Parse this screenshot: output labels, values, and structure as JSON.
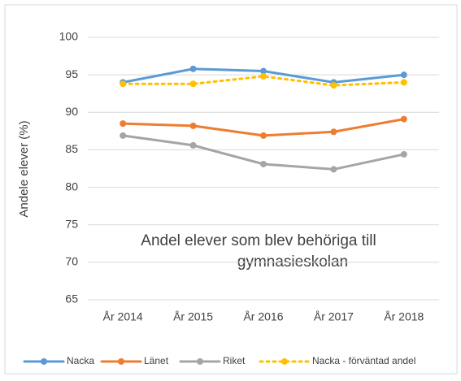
{
  "chart_data": {
    "type": "line",
    "title_lines": [
      "Andel elever som blev behöriga till",
      "gymnasieskolan"
    ],
    "ylabel": "Andele elever (%)",
    "categories": [
      "År 2014",
      "År 2015",
      "År 2016",
      "År 2017",
      "År 2018"
    ],
    "series": [
      {
        "name": "Nacka",
        "color": "#5b9bd5",
        "values": [
          94,
          95.8,
          95.5,
          94,
          95
        ]
      },
      {
        "name": "Länet",
        "color": "#ed7d31",
        "values": [
          88.5,
          88.2,
          86.9,
          87.4,
          89.1
        ]
      },
      {
        "name": "Riket",
        "color": "#a5a5a5",
        "values": [
          86.9,
          85.6,
          83.1,
          82.4,
          84.4
        ]
      },
      {
        "name": "Nacka - förväntad andel",
        "color": "#ffc000",
        "dotted": true,
        "values": [
          93.8,
          93.8,
          94.8,
          93.6,
          94
        ]
      }
    ],
    "ylim": [
      65,
      100
    ],
    "yticks": [
      65,
      70,
      75,
      80,
      85,
      90,
      95,
      100
    ],
    "grid": true,
    "legend": "bottom"
  }
}
